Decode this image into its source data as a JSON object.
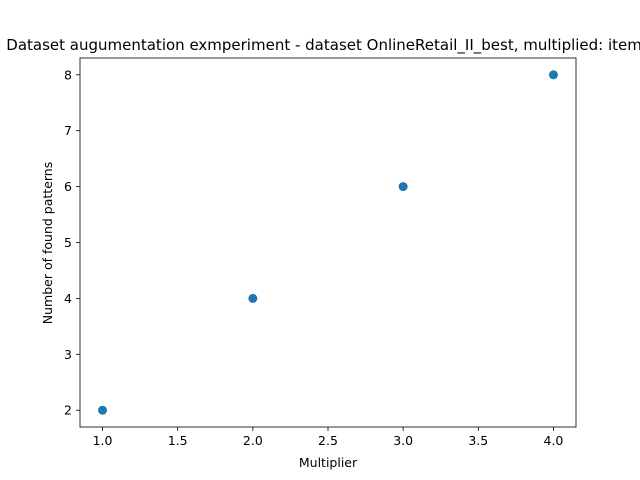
{
  "chart_data": {
    "type": "scatter",
    "title": "Dataset augumentation exmperiment - dataset OnlineRetail_II_best, multiplied: items",
    "xlabel": "Multiplier",
    "ylabel": "Number of found patterns",
    "x": [
      1.0,
      2.0,
      3.0,
      4.0
    ],
    "y": [
      2,
      4,
      6,
      8
    ],
    "xlim": [
      0.85,
      4.15
    ],
    "ylim": [
      1.7,
      8.3
    ],
    "xticks": [
      "1.0",
      "1.5",
      "2.0",
      "2.5",
      "3.0",
      "3.5",
      "4.0"
    ],
    "yticks": [
      "2",
      "3",
      "4",
      "5",
      "6",
      "7",
      "8"
    ],
    "grid": false,
    "marker_color": "#1f77b4"
  }
}
